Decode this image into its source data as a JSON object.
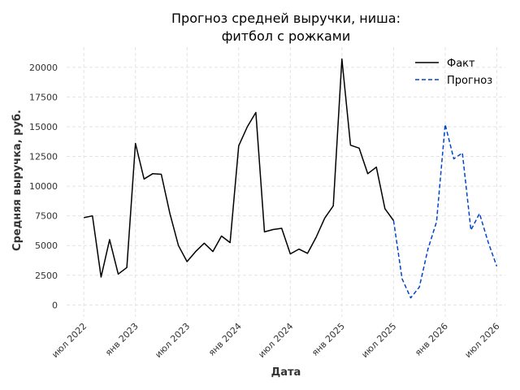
{
  "chart_data": {
    "type": "line",
    "title_line1": "Прогноз средней выручки, ниша:",
    "title_line2": "фитбол с рожками",
    "xlabel": "Дата",
    "ylabel": "Средняя выручка, руб.",
    "ylim": [
      -1000,
      21700
    ],
    "xlim": [
      "2022-05",
      "2026-08"
    ],
    "grid": true,
    "legend_position": "top-right",
    "x_ticks": [
      {
        "date": "2022-07",
        "label": "июл 2022"
      },
      {
        "date": "2023-01",
        "label": "янв 2023"
      },
      {
        "date": "2023-07",
        "label": "июл 2023"
      },
      {
        "date": "2024-01",
        "label": "янв 2024"
      },
      {
        "date": "2024-07",
        "label": "июл 2024"
      },
      {
        "date": "2025-01",
        "label": "янв 2025"
      },
      {
        "date": "2025-07",
        "label": "июл 2025"
      },
      {
        "date": "2026-01",
        "label": "янв 2026"
      },
      {
        "date": "2026-07",
        "label": "июл 2026"
      }
    ],
    "y_ticks": [
      {
        "value": 0,
        "label": "0"
      },
      {
        "value": 2500,
        "label": "2500"
      },
      {
        "value": 5000,
        "label": "5000"
      },
      {
        "value": 7500,
        "label": "7500"
      },
      {
        "value": 10000,
        "label": "10000"
      },
      {
        "value": 12500,
        "label": "12500"
      },
      {
        "value": 15000,
        "label": "15000"
      },
      {
        "value": 17500,
        "label": "17500"
      },
      {
        "value": 20000,
        "label": "20000"
      }
    ],
    "series": [
      {
        "name": "Факт",
        "color": "#000000",
        "dash": "solid",
        "points": [
          [
            "2022-07",
            7350
          ],
          [
            "2022-08",
            7500
          ],
          [
            "2022-09",
            2350
          ],
          [
            "2022-10",
            5500
          ],
          [
            "2022-11",
            2600
          ],
          [
            "2022-12",
            3150
          ],
          [
            "2023-01",
            13600
          ],
          [
            "2023-02",
            10600
          ],
          [
            "2023-03",
            11050
          ],
          [
            "2023-04",
            11000
          ],
          [
            "2023-05",
            7700
          ],
          [
            "2023-06",
            5000
          ],
          [
            "2023-07",
            3650
          ],
          [
            "2023-08",
            4500
          ],
          [
            "2023-09",
            5200
          ],
          [
            "2023-10",
            4500
          ],
          [
            "2023-11",
            5800
          ],
          [
            "2023-12",
            5250
          ],
          [
            "2024-01",
            13400
          ],
          [
            "2024-02",
            15000
          ],
          [
            "2024-03",
            16200
          ],
          [
            "2024-04",
            6150
          ],
          [
            "2024-05",
            6350
          ],
          [
            "2024-06",
            6450
          ],
          [
            "2024-07",
            4300
          ],
          [
            "2024-08",
            4700
          ],
          [
            "2024-09",
            4350
          ],
          [
            "2024-10",
            5700
          ],
          [
            "2024-11",
            7300
          ],
          [
            "2024-12",
            8350
          ],
          [
            "2025-01",
            20700
          ],
          [
            "2025-02",
            13450
          ],
          [
            "2025-03",
            13200
          ],
          [
            "2025-04",
            11050
          ],
          [
            "2025-05",
            11600
          ],
          [
            "2025-06",
            8100
          ],
          [
            "2025-07",
            7100
          ]
        ]
      },
      {
        "name": "Прогноз",
        "color": "#0044cc",
        "dash": "dashed",
        "points": [
          [
            "2025-07",
            7100
          ],
          [
            "2025-08",
            2200
          ],
          [
            "2025-09",
            600
          ],
          [
            "2025-10",
            1500
          ],
          [
            "2025-11",
            4700
          ],
          [
            "2025-12",
            7000
          ],
          [
            "2026-01",
            15200
          ],
          [
            "2026-02",
            12300
          ],
          [
            "2026-03",
            12800
          ],
          [
            "2026-04",
            6300
          ],
          [
            "2026-05",
            7700
          ],
          [
            "2026-06",
            5300
          ],
          [
            "2026-07",
            3250
          ]
        ]
      }
    ]
  }
}
